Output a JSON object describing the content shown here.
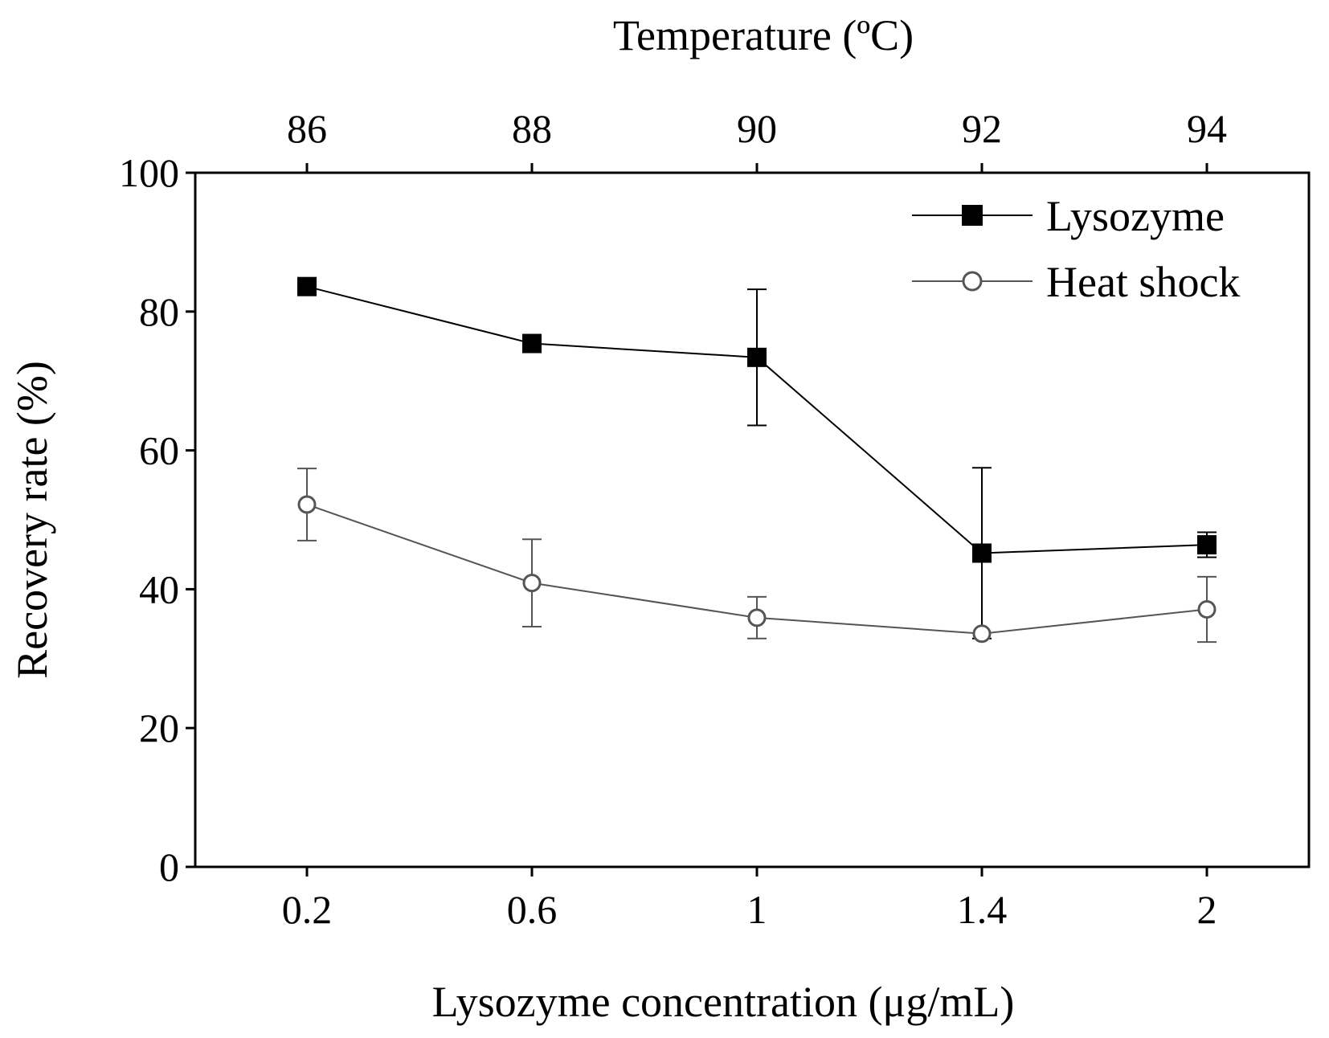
{
  "chart_data": {
    "type": "line",
    "xlabel": "Lysozyme concentration (μg/mL)",
    "x2label": "Temperature (ºC)",
    "ylabel": "Recovery rate (%)",
    "categories": [
      "0.2",
      "0.6",
      "1",
      "1.4",
      "2"
    ],
    "top_categories": [
      "86",
      "88",
      "90",
      "92",
      "94"
    ],
    "y_ticks": [
      "0",
      "20",
      "40",
      "60",
      "80",
      "100"
    ],
    "ylim": [
      0,
      100
    ],
    "legend_position": "top-right",
    "grid": false,
    "series": [
      {
        "name": "Lysozyme",
        "marker": "filled-square",
        "color": "#000000",
        "values": [
          83.6,
          75.4,
          73.4,
          45.2,
          46.4
        ],
        "errors": [
          0,
          0,
          9.8,
          12.3,
          1.8
        ]
      },
      {
        "name": "Heat shock",
        "marker": "open-circle",
        "color": "#555555",
        "values": [
          52.2,
          40.9,
          35.9,
          33.6,
          37.1
        ],
        "errors": [
          5.2,
          6.3,
          3.0,
          0,
          4.7
        ]
      }
    ]
  }
}
